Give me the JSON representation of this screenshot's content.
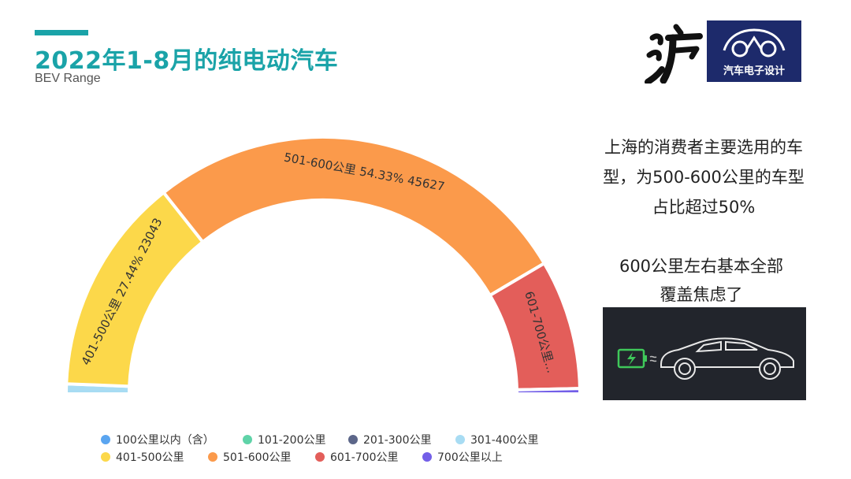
{
  "header": {
    "title": "2022年1-8月的纯电动汽车",
    "subtitle": "BEV Range",
    "logo_text": "汽车电子设计",
    "calligraphy_text": "沪"
  },
  "notes": {
    "note1_lines": [
      "上海的消费者主要选用的车",
      "型，为500-600公里的车型",
      "占比超过50%"
    ],
    "note2_lines": [
      "600公里左右基本全部",
      "覆盖焦虑了"
    ]
  },
  "colors": {
    "accent": "#1aa3a8",
    "logo_bg": "#1d2a6b"
  },
  "chart_data": {
    "type": "pie",
    "variant": "half-donut",
    "title": "",
    "categories": [
      "100公里以内（含）",
      "101-200公里",
      "201-300公里",
      "301-400公里",
      "401-500公里",
      "501-600公里",
      "601-700公里",
      "700公里以上"
    ],
    "values": [
      0,
      0,
      0,
      1050,
      23043,
      45627,
      13700,
      560
    ],
    "percents": [
      0,
      0,
      0,
      1.25,
      27.44,
      54.33,
      16.31,
      0.67
    ],
    "colors": [
      "#5aa5f0",
      "#5fd3a8",
      "#5c6689",
      "#a8dcf3",
      "#fcd84a",
      "#fb9a4b",
      "#e35e5a",
      "#735fe8"
    ],
    "slice_labels": [
      {
        "index": 4,
        "text": "401-500公里  27.44%  23043"
      },
      {
        "index": 5,
        "text": "501-600公里  54.33%  45627"
      },
      {
        "index": 6,
        "text": "601-700公里..."
      }
    ],
    "legend_position": "bottom"
  }
}
